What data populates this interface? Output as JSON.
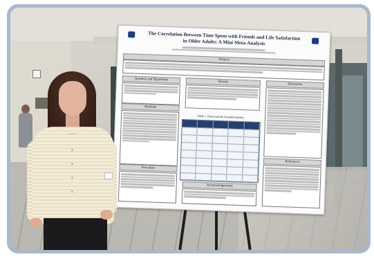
{
  "poster": {
    "title": "The Correlation Between Time Spent with Friends and Life Satisfaction in Older Adults: A Mini Meta-Analysis",
    "sections": {
      "abstract": "Abstract",
      "question": "Question and Hypothesis",
      "results": "Results",
      "discussion": "Discussion",
      "methods": "Methods",
      "procedure": "Procedure",
      "acknowledgements": "Acknowledgements",
      "references": "References"
    },
    "table_title": "Table 1. Data from the Included Articles"
  },
  "colors": {
    "frame": "#a9b9cc",
    "poster_header": "#d5d5d5",
    "table_header": "#23406e"
  }
}
